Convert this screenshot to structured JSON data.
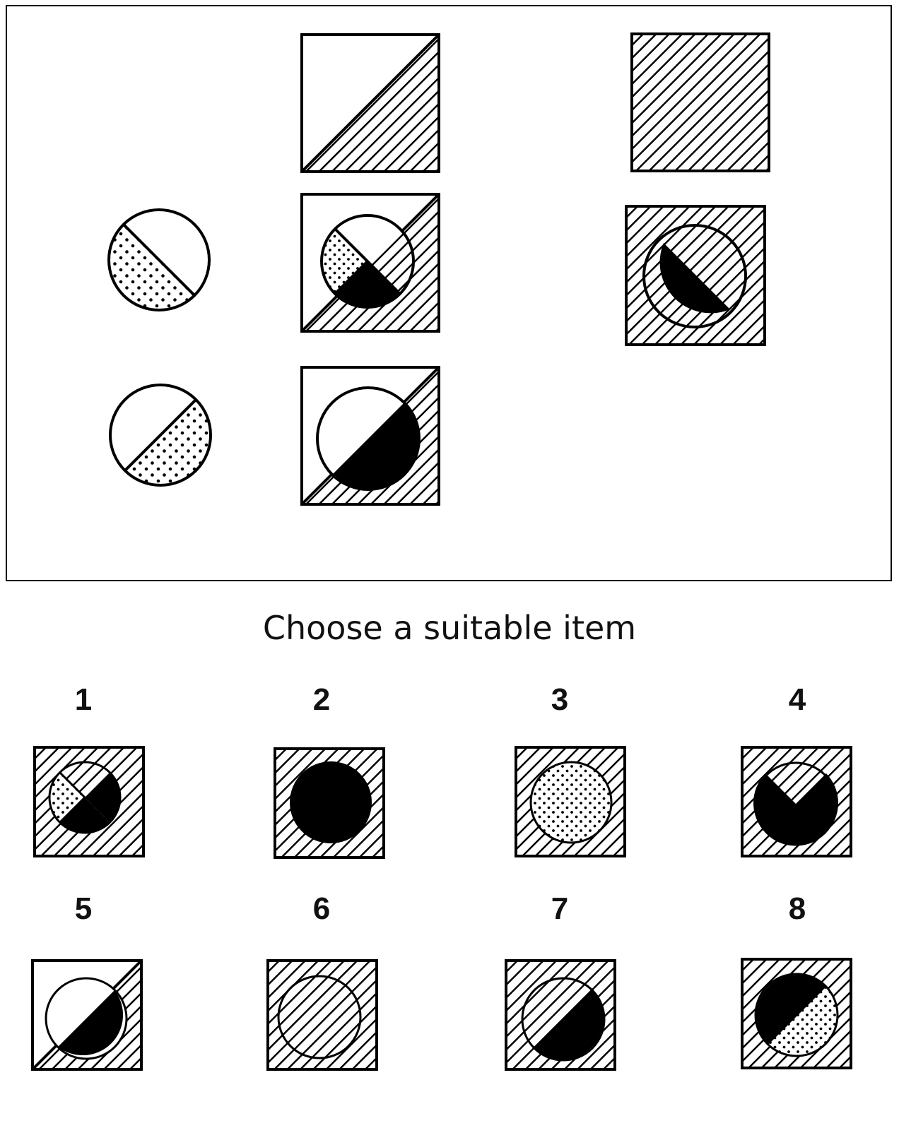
{
  "prompt": "Choose a suitable item",
  "options": [
    {
      "number": "1"
    },
    {
      "number": "2"
    },
    {
      "number": "3"
    },
    {
      "number": "4"
    },
    {
      "number": "5"
    },
    {
      "number": "6"
    },
    {
      "number": "7"
    },
    {
      "number": "8"
    }
  ],
  "colors": {
    "ink": "#000000",
    "paper": "#ffffff"
  }
}
